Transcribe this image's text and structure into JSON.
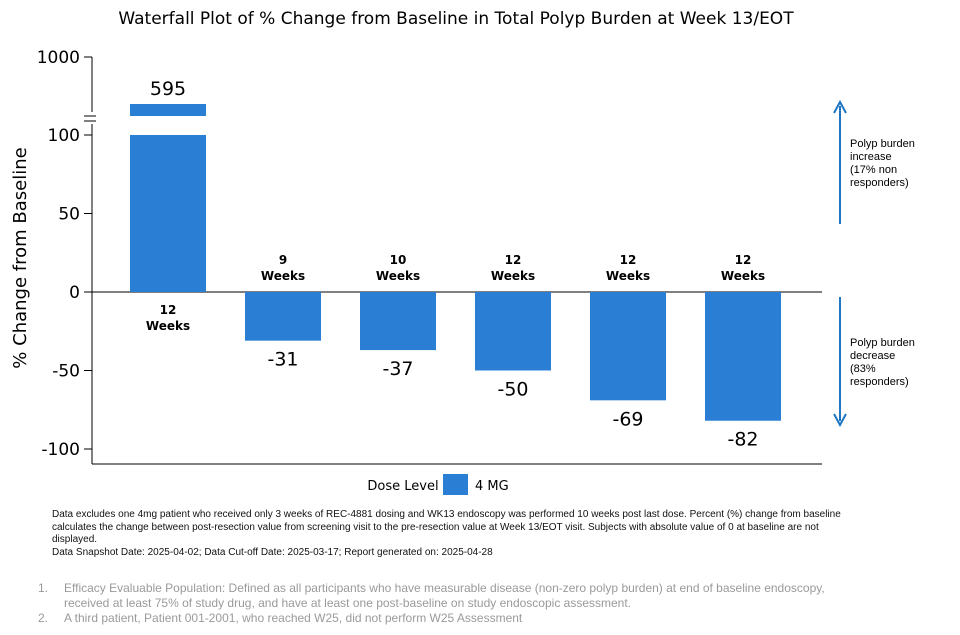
{
  "chart_data": {
    "type": "bar",
    "title": "Waterfall Plot of % Change from Baseline in Total Polyp Burden at Week 13/EOT",
    "ylabel": "% Change from Baseline",
    "xlabel": "",
    "ylim": [
      -100,
      1000
    ],
    "axis_break": [
      100,
      1000
    ],
    "yticks": [
      "1000",
      "100",
      "50",
      "0",
      "-50",
      "-100"
    ],
    "grid": false,
    "bar_color": "#2a7fd4",
    "values": [
      595,
      -31,
      -37,
      -50,
      -69,
      -82
    ],
    "value_labels": [
      "595",
      "-31",
      "-37",
      "-50",
      "-69",
      "-82"
    ],
    "duration_labels": [
      [
        "12",
        "Weeks"
      ],
      [
        "9",
        "Weeks"
      ],
      [
        "10",
        "Weeks"
      ],
      [
        "12",
        "Weeks"
      ],
      [
        "12",
        "Weeks"
      ],
      [
        "12",
        "Weeks"
      ]
    ],
    "legend": {
      "title": "Dose Level",
      "label": "4 MG",
      "position": "bottom-center"
    },
    "annotations": {
      "increase": [
        "Polyp burden",
        "increase",
        "(17% non",
        "responders)"
      ],
      "decrease": [
        "Polyp burden",
        "decrease",
        "(83%",
        "responders)"
      ],
      "arrow_color": "#1f77c4"
    }
  },
  "notes": {
    "line1": "Data excludes one 4mg patient who received only 3 weeks of REC-4881 dosing and WK13 endoscopy was performed 10 weeks post last dose. Percent (%) change from baseline calculates the change between post-resection value from screening visit to the pre-resection value at Week 13/EOT visit. Subjects with absolute value of 0 at baseline are not displayed.",
    "line2": "Data Snapshot Date: 2025-04-02; Data Cut-off Date: 2025-03-17; Report generated on: 2025-04-28"
  },
  "footnotes": [
    {
      "num": "1.",
      "text": "Efficacy Evaluable Population: Defined as all participants who have measurable disease (non-zero polyp burden) at end of baseline endoscopy, received at least 75% of study drug, and have at least one post-baseline on study endoscopic assessment."
    },
    {
      "num": "2.",
      "text": "A third patient, Patient 001-2001, who reached W25, did not perform W25 Assessment"
    }
  ]
}
